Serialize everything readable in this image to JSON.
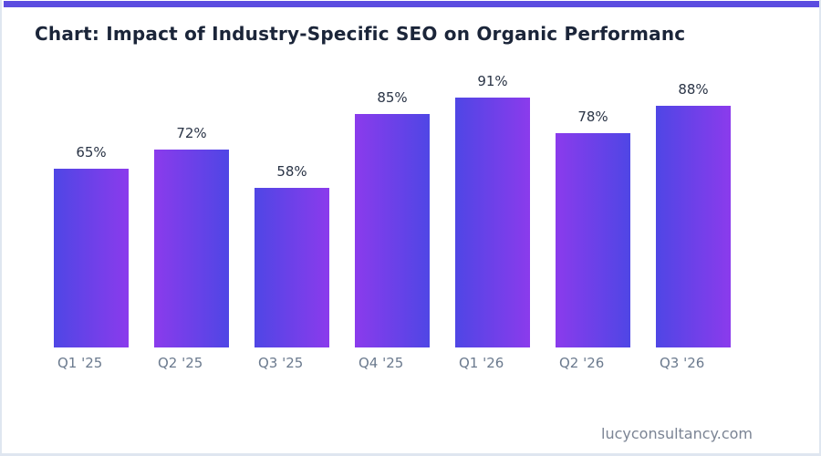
{
  "page": {
    "footer": "lucyconsultancy.com"
  },
  "theme": {
    "accent_strip_color": "#5b4ce0",
    "background": "#ffffff",
    "border_color": "#dfe6f0",
    "title_color": "#1b2539",
    "value_label_color": "#2a3446",
    "axis_label_color": "#6b7a8e",
    "footer_color": "#7b8494",
    "bar_gradient_from": "#4f46e5",
    "bar_gradient_to": "#8b3bec"
  },
  "chart_data": {
    "type": "bar",
    "title": "Chart: Impact of Industry-Specific SEO on Organic Performanc",
    "categories": [
      "Q1 '25",
      "Q2 '25",
      "Q3 '25",
      "Q4 '25",
      "Q1 '26",
      "Q2 '26",
      "Q3 '26"
    ],
    "values": [
      65,
      72,
      58,
      85,
      91,
      78,
      88
    ],
    "value_labels": [
      "65%",
      "72%",
      "58%",
      "85%",
      "91%",
      "78%",
      "88%"
    ],
    "xlabel": "",
    "ylabel": "",
    "ylim": [
      0,
      100
    ],
    "grid": false,
    "legend": null,
    "axis_lines": false,
    "bar_gradient": {
      "from": "#4f46e5",
      "to": "#8b3bec",
      "direction": "horizontal-alternating"
    }
  }
}
